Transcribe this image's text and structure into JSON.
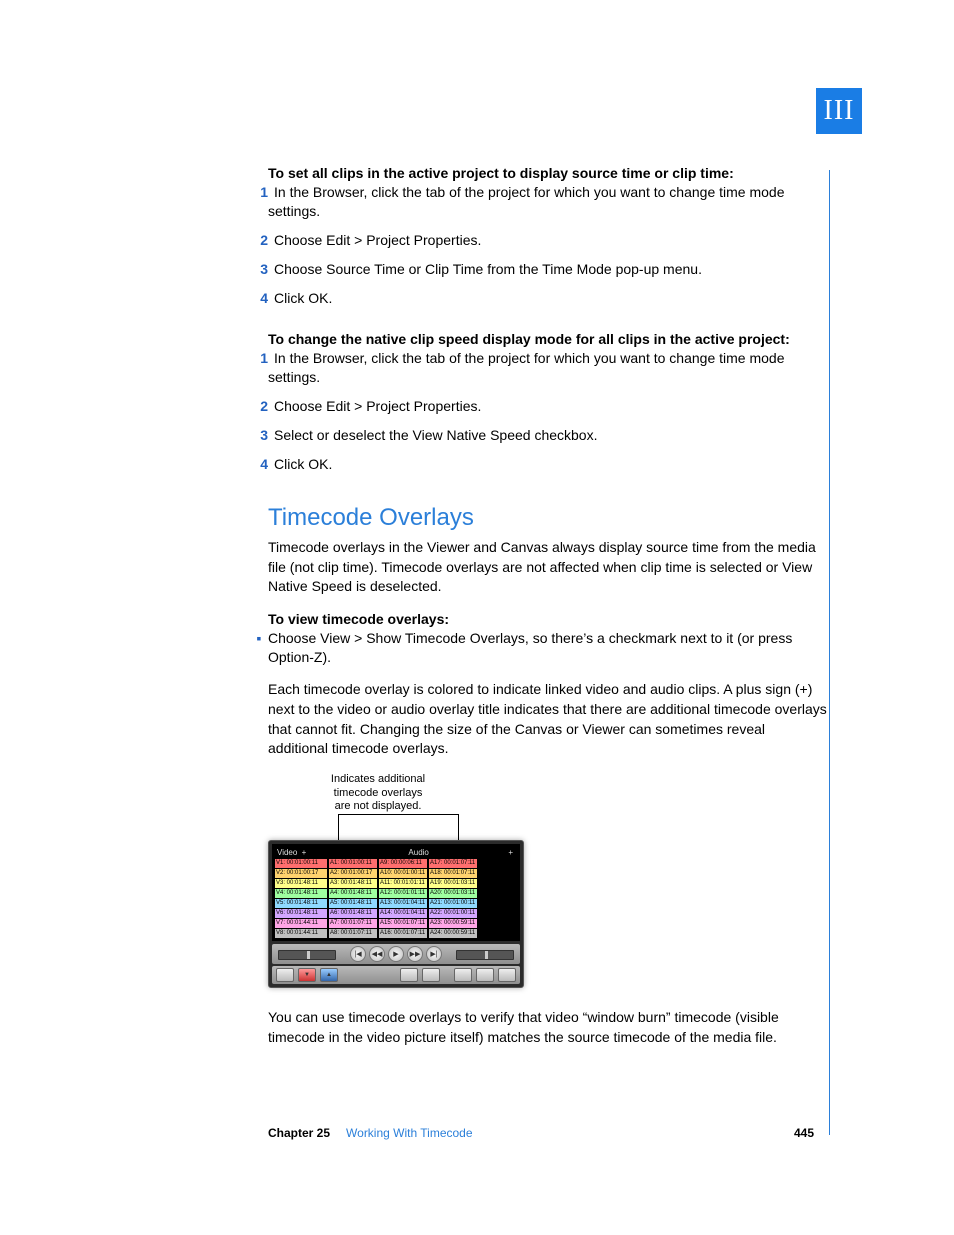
{
  "part_label": "III",
  "sectionA": {
    "lead": "To set all clips in the active project to display source time or clip time:",
    "steps": [
      "In the Browser, click the tab of the project for which you want to change time mode settings.",
      "Choose Edit > Project Properties.",
      "Choose Source Time or Clip Time from the Time Mode pop-up menu.",
      "Click OK."
    ]
  },
  "sectionB": {
    "lead": "To change the native clip speed display mode for all clips in the active project:",
    "steps": [
      "In the Browser, click the tab of the project for which you want to change time mode settings.",
      "Choose Edit > Project Properties.",
      "Select or deselect the View Native Speed checkbox.",
      "Click OK."
    ]
  },
  "overlays": {
    "heading": "Timecode Overlays",
    "intro": "Timecode overlays in the Viewer and Canvas always display source time from the media file (not clip time). Timecode overlays are not affected when clip time is selected or View Native Speed is deselected.",
    "sublead": "To view timecode overlays:",
    "bullet": "Choose View > Show Timecode Overlays, so there’s a checkmark next to it (or press Option-Z).",
    "para2": "Each timecode overlay is colored to indicate linked video and audio clips. A plus sign (+) next to the video or audio overlay title indicates that there are additional timecode overlays that cannot fit. Changing the size of the Canvas or Viewer can sometimes reveal additional timecode overlays.",
    "para3": "You can use timecode overlays to verify that video “window burn” timecode (visible timecode in the video picture itself) matches the source timecode of the media file."
  },
  "figure": {
    "callout_l1": "Indicates additional",
    "callout_l2": "timecode overlays",
    "callout_l3": "are not displayed.",
    "video_header": "Video",
    "audio_header": "Audio",
    "plus": "+",
    "row_colors": [
      "#ff6e6e",
      "#ffd36e",
      "#ffff8a",
      "#9effa0",
      "#8fd9ff",
      "#d3a6ff",
      "#ffa6e6",
      "#c0c0c0"
    ],
    "cells": [
      [
        "V1: 00:01:00:11",
        "A1: 00:01:00:11",
        "A9: 00:00:06:11",
        "A17: 00:01:07:11"
      ],
      [
        "V2: 00:01:00:17",
        "A2: 00:01:00:17",
        "A10: 00:01:00:11",
        "A18: 00:01:07:11"
      ],
      [
        "V3: 00:01:48:11",
        "A3: 00:01:48:11",
        "A11: 00:01:01:11",
        "A19: 00:01:03:11"
      ],
      [
        "V4: 00:01:48:11",
        "A4: 00:01:48:11",
        "A12: 00:01:01:11",
        "A20: 00:01:03:11"
      ],
      [
        "V5: 00:01:48:11",
        "A5: 00:01:48:11",
        "A13: 00:01:04:11",
        "A21: 00:01:00:11"
      ],
      [
        "V6: 00:01:48:11",
        "A6: 00:01:48:11",
        "A14: 00:01:04:11",
        "A22: 00:01:00:11"
      ],
      [
        "V7: 00:01:44:11",
        "A7: 00:01:07:11",
        "A15: 00:01:07:11",
        "A23: 00:00:59:11"
      ],
      [
        "V8: 00:01:44:11",
        "A8: 00:01:07:11",
        "A16: 00:01:07:11",
        "A24: 00:00:59:11"
      ]
    ],
    "transport_glyphs": [
      "|◀",
      "◀◀",
      "▶",
      "▶▶",
      "▶|"
    ]
  },
  "footer": {
    "chapter": "Chapter 25",
    "title": "Working With Timecode",
    "page": "445"
  }
}
